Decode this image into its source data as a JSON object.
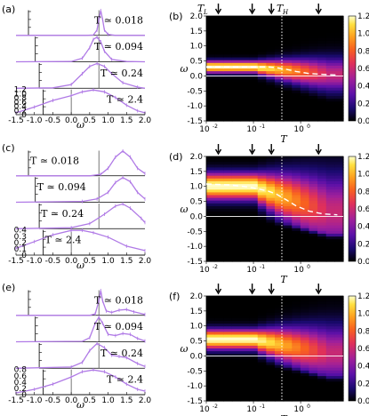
{
  "colors": {
    "curve": "#b07ae6",
    "guide": "#555555",
    "dashed": "#ffffff",
    "colormap": [
      "#000000",
      "#1a0a6e",
      "#5a10a8",
      "#a0209a",
      "#e0305a",
      "#f86020",
      "#fda020",
      "#ffe040",
      "#ffffd0"
    ]
  },
  "panel_labels": {
    "a": "(a)",
    "b": "(b)",
    "c": "(c)",
    "d": "(d)",
    "e": "(e)",
    "f": "(f)"
  },
  "axes_titles": {
    "omega": "ω",
    "T": "T",
    "T_L": "T",
    "T_L_sub": "L",
    "T_H": "T",
    "T_H_sub": "H"
  },
  "chart_data": [
    {
      "id": "a",
      "type": "line",
      "xlabel": "ω",
      "xlim": [
        -1.5,
        2.0
      ],
      "xticks": [
        "-1.5",
        "-1.0",
        "-0.5",
        "0.0",
        "0.5",
        "1.0",
        "1.5",
        "2.0"
      ],
      "yticks_bottom": [
        "0",
        "0.2",
        "0.4",
        "0.6",
        "0.8",
        "1.0",
        "1.2"
      ],
      "series": [
        {
          "temp_label": "T ≃ 0.018",
          "x": [
            -1.5,
            0.4,
            0.6,
            0.7,
            0.75,
            0.8,
            0.85,
            0.9,
            1.0,
            1.2,
            1.5,
            2.0
          ],
          "y": [
            0,
            0,
            0.02,
            0.3,
            0.9,
            1.4,
            0.9,
            0.3,
            0.05,
            0,
            0,
            0
          ]
        },
        {
          "temp_label": "T ≃ 0.094",
          "x": [
            -1.5,
            0.0,
            0.3,
            0.5,
            0.6,
            0.7,
            0.8,
            0.9,
            1.1,
            1.5,
            2.0
          ],
          "y": [
            0,
            0.01,
            0.15,
            0.6,
            0.95,
            1.05,
            0.85,
            0.45,
            0.1,
            0.01,
            0
          ]
        },
        {
          "temp_label": "T ≃ 0.24",
          "x": [
            -1.5,
            -0.5,
            0.0,
            0.3,
            0.5,
            0.7,
            0.9,
            1.1,
            1.4,
            1.8,
            2.0
          ],
          "y": [
            0,
            0.01,
            0.1,
            0.4,
            0.6,
            0.68,
            0.6,
            0.4,
            0.15,
            0.03,
            0
          ]
        },
        {
          "temp_label": "T ≃ 2.4",
          "x": [
            -1.5,
            -1.0,
            -0.5,
            0.0,
            0.3,
            0.6,
            0.9,
            1.2,
            1.5,
            1.8,
            2.0
          ],
          "y": [
            0.02,
            0.08,
            0.15,
            0.2,
            0.24,
            0.26,
            0.24,
            0.18,
            0.1,
            0.04,
            0.02
          ]
        }
      ]
    },
    {
      "id": "b",
      "type": "heatmap",
      "xlabel": "T",
      "ylabel": "ω",
      "xlim_log": [
        0.01,
        8
      ],
      "ylim": [
        -1.5,
        2.0
      ],
      "xticks": [
        "10",
        "10",
        "10"
      ],
      "xtick_exp": [
        "-2",
        "-1",
        "0"
      ],
      "yticks": [
        "2.0",
        "1.5",
        "1.0",
        "0.5",
        "0.0",
        "-0.5",
        "-1.0",
        "-1.5"
      ],
      "colorbar_ticks": [
        "1.2",
        "1.0",
        "0.8",
        "0.6",
        "0.4",
        "0.2",
        "0.0"
      ],
      "arrow_T": [
        0.018,
        0.094,
        0.24,
        2.4
      ],
      "T_H": 0.4,
      "dashed_peak": {
        "x": [
          0.01,
          0.05,
          0.1,
          0.2,
          0.3,
          0.5,
          0.8,
          1.5,
          3,
          6
        ],
        "y": [
          0.3,
          0.3,
          0.3,
          0.3,
          0.28,
          0.22,
          0.15,
          0.08,
          0.05,
          0.03
        ]
      },
      "features": {
        "center": 0.3,
        "width": 0.18,
        "floor": -0.1
      }
    },
    {
      "id": "c",
      "type": "line",
      "xlabel": "ω",
      "xlim": [
        -1.5,
        2.0
      ],
      "xticks": [
        "-1.5",
        "-1.0",
        "-0.5",
        "0.0",
        "0.5",
        "1.0",
        "1.5",
        "2.0"
      ],
      "yticks_bottom": [
        "0",
        "0.1",
        "0.2",
        "0.3",
        "0.4"
      ],
      "series": [
        {
          "temp_label": "T ≃ 0.018",
          "x": [
            -1.5,
            0.5,
            0.8,
            1.0,
            1.2,
            1.4,
            1.6,
            1.8,
            2.0
          ],
          "y": [
            0,
            0,
            0.02,
            0.1,
            0.25,
            0.33,
            0.25,
            0.1,
            0.03
          ]
        },
        {
          "temp_label": "T ≃ 0.094",
          "x": [
            -1.5,
            0.3,
            0.7,
            1.0,
            1.2,
            1.4,
            1.6,
            1.8,
            2.0
          ],
          "y": [
            0,
            0.01,
            0.04,
            0.12,
            0.24,
            0.3,
            0.25,
            0.12,
            0.04
          ]
        },
        {
          "temp_label": "T ≃ 0.24",
          "x": [
            -1.5,
            0.0,
            0.5,
            0.9,
            1.2,
            1.4,
            1.6,
            1.9,
            2.0
          ],
          "y": [
            0,
            0.01,
            0.05,
            0.14,
            0.22,
            0.24,
            0.2,
            0.1,
            0.06
          ]
        },
        {
          "temp_label": "T ≃ 2.4",
          "x": [
            -1.5,
            -1.0,
            -0.5,
            0.0,
            0.3,
            0.6,
            1.0,
            1.5,
            2.0
          ],
          "y": [
            0.03,
            0.06,
            0.09,
            0.11,
            0.11,
            0.1,
            0.08,
            0.04,
            0.02
          ]
        }
      ]
    },
    {
      "id": "d",
      "type": "heatmap",
      "xlabel": "T",
      "ylabel": "ω",
      "xlim_log": [
        0.01,
        8
      ],
      "ylim": [
        -1.5,
        2.0
      ],
      "xticks": [
        "10",
        "10",
        "10"
      ],
      "xtick_exp": [
        "-2",
        "-1",
        "0"
      ],
      "yticks": [
        "2.0",
        "1.5",
        "1.0",
        "0.5",
        "0.0",
        "-0.5",
        "-1.0",
        "-1.5"
      ],
      "colorbar_ticks": [
        "1.2",
        "1.0",
        "0.8",
        "0.6",
        "0.4",
        "0.2",
        "0.0"
      ],
      "arrow_T": [
        0.018,
        0.094,
        0.24,
        2.4
      ],
      "T_H": 0.4,
      "dashed_peak": {
        "x": [
          0.01,
          0.03,
          0.06,
          0.1,
          0.2,
          0.3,
          0.5,
          0.8,
          1.5,
          3,
          6
        ],
        "y": [
          1.08,
          1.05,
          1.0,
          0.95,
          0.85,
          0.75,
          0.55,
          0.35,
          0.18,
          0.08,
          0.05
        ]
      },
      "features": {
        "center": 1.0,
        "width": 0.4,
        "floor": 0.05
      }
    },
    {
      "id": "e",
      "type": "line",
      "xlabel": "ω",
      "xlim": [
        -1.5,
        2.0
      ],
      "xticks": [
        "-1.5",
        "-1.0",
        "-0.5",
        "0.0",
        "0.5",
        "1.0",
        "1.5",
        "2.0"
      ],
      "yticks_bottom": [
        "0",
        "0.2",
        "0.4",
        "0.6",
        "0.8"
      ],
      "series": [
        {
          "temp_label": "T ≃ 0.018",
          "x": [
            -1.5,
            0.5,
            0.65,
            0.75,
            0.8,
            0.85,
            0.95,
            1.1,
            1.3,
            1.5,
            1.7,
            2.0
          ],
          "y": [
            0,
            0,
            0.05,
            0.5,
            0.85,
            0.5,
            0.15,
            0.1,
            0.18,
            0.2,
            0.12,
            0.03
          ]
        },
        {
          "temp_label": "T ≃ 0.094",
          "x": [
            -1.5,
            0.3,
            0.5,
            0.65,
            0.75,
            0.85,
            1.0,
            1.2,
            1.4,
            1.6,
            1.8,
            2.0
          ],
          "y": [
            0,
            0.01,
            0.1,
            0.45,
            0.6,
            0.45,
            0.18,
            0.15,
            0.2,
            0.18,
            0.08,
            0.02
          ]
        },
        {
          "temp_label": "T ≃ 0.24",
          "x": [
            -1.5,
            0.0,
            0.3,
            0.5,
            0.7,
            0.9,
            1.1,
            1.3,
            1.5,
            1.8,
            2.0
          ],
          "y": [
            0,
            0.02,
            0.1,
            0.3,
            0.42,
            0.35,
            0.22,
            0.2,
            0.18,
            0.08,
            0.03
          ]
        },
        {
          "temp_label": "T ≃ 2.4",
          "x": [
            -1.5,
            -1.0,
            -0.5,
            0.0,
            0.3,
            0.6,
            0.9,
            1.2,
            1.5,
            1.8,
            2.0
          ],
          "y": [
            0.01,
            0.03,
            0.06,
            0.1,
            0.13,
            0.14,
            0.13,
            0.1,
            0.06,
            0.03,
            0.02
          ]
        }
      ]
    },
    {
      "id": "f",
      "type": "heatmap",
      "xlabel": "T",
      "ylabel": "ω",
      "xlim_log": [
        0.01,
        8
      ],
      "ylim": [
        -1.5,
        2.0
      ],
      "xticks": [
        "10",
        "10",
        "10"
      ],
      "xtick_exp": [
        "-2",
        "-1",
        "0"
      ],
      "yticks": [
        "2.0",
        "1.5",
        "1.0",
        "0.5",
        "0.0",
        "-0.5",
        "-1.0",
        "-1.5"
      ],
      "colorbar_ticks": [
        "1.2",
        "1.0",
        "0.8",
        "0.6",
        "0.4",
        "0.2",
        "0.0"
      ],
      "arrow_T": [
        0.018,
        0.094,
        0.24,
        2.4
      ],
      "T_H": 0.4,
      "features": {
        "center": 0.55,
        "width": 0.3,
        "floor": -0.05
      }
    }
  ]
}
